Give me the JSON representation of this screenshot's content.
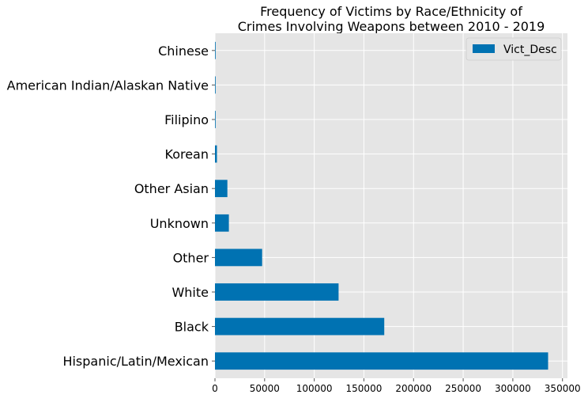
{
  "chart_data": {
    "type": "bar",
    "orientation": "horizontal",
    "title": "Frequency of Victims by Race/Ethnicity of\nCrimes Involving Weapons between 2010 - 2019",
    "categories": [
      "Hispanic/Latin/Mexican",
      "Black",
      "White",
      "Other",
      "Unknown",
      "Other Asian",
      "Korean",
      "Filipino",
      "American Indian/Alaskan Native",
      "Chinese"
    ],
    "series": [
      {
        "name": "Vict_Desc",
        "values": [
          335500,
          170500,
          124500,
          47500,
          14000,
          12500,
          2000,
          600,
          400,
          300
        ]
      }
    ],
    "xlim": [
      0,
      355000
    ],
    "xticks": [
      0,
      50000,
      100000,
      150000,
      200000,
      250000,
      300000,
      350000
    ],
    "xtick_labels": [
      "0",
      "50000",
      "100000",
      "150000",
      "200000",
      "250000",
      "300000",
      "350000"
    ],
    "xlabel": "",
    "ylabel": "",
    "grid": true,
    "legend_position": "top-right",
    "colors": {
      "bar": "#0072B2",
      "plot_background": "#E5E5E5",
      "grid": "#FFFFFF",
      "text": "#000000",
      "tick": "#555555"
    }
  }
}
